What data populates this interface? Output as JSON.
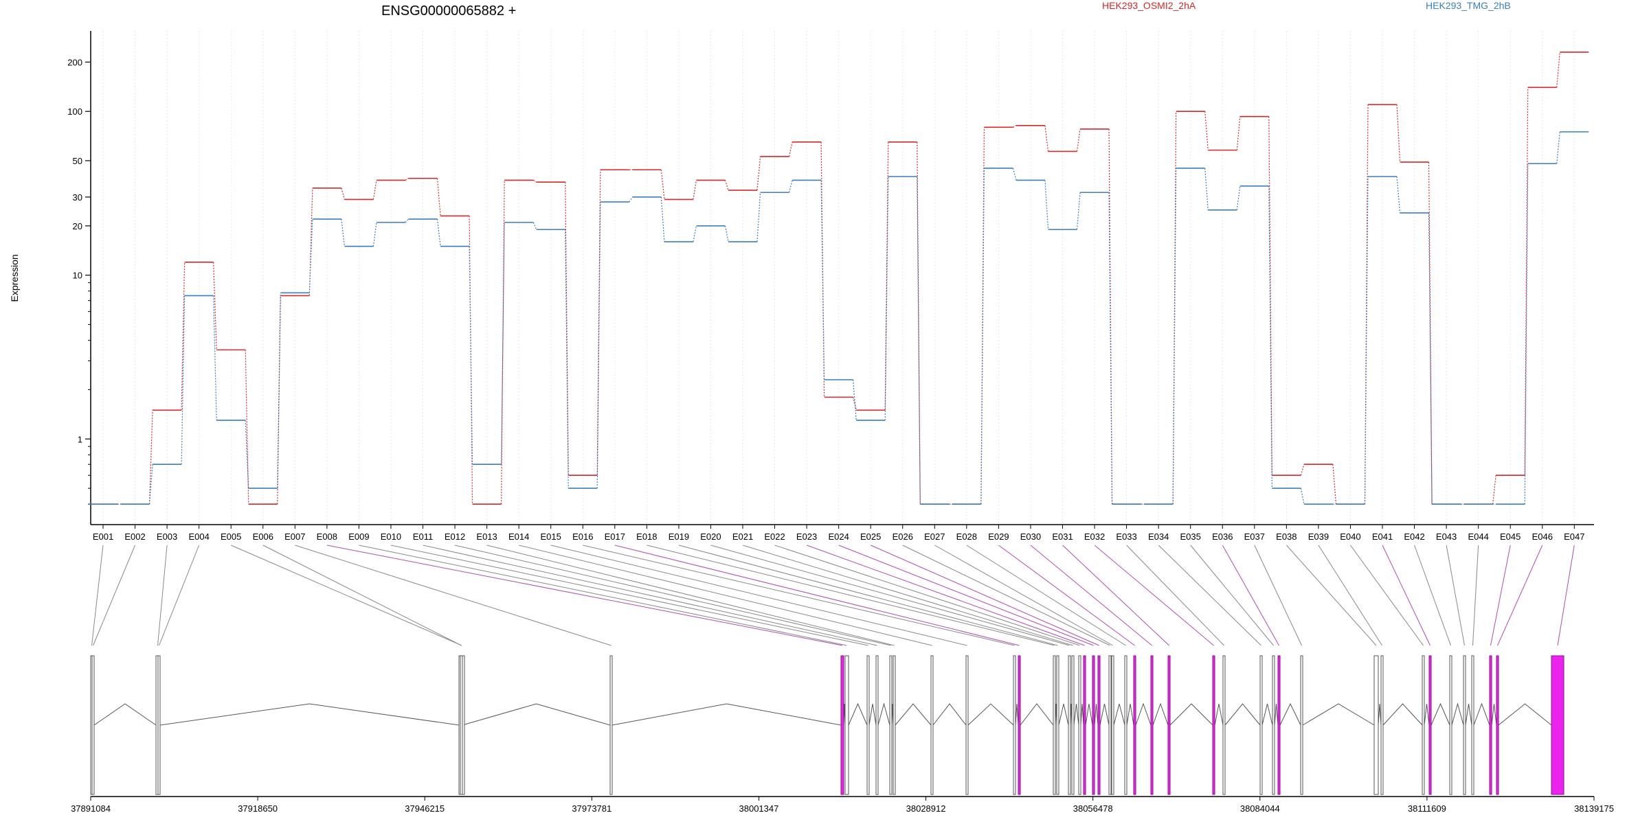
{
  "chart_data": {
    "type": "line",
    "title": "ENSG00000065882 +",
    "ylabel": "Expression",
    "yscale": "log",
    "ylim": [
      0.3,
      310
    ],
    "yticks": [
      1,
      10,
      20,
      30,
      50,
      100,
      200
    ],
    "grid": "vertical dotted at each exon",
    "categories": [
      "E001",
      "E002",
      "E003",
      "E004",
      "E005",
      "E006",
      "E007",
      "E008",
      "E009",
      "E010",
      "E011",
      "E012",
      "E013",
      "E014",
      "E015",
      "E016",
      "E017",
      "E018",
      "E019",
      "E020",
      "E021",
      "E022",
      "E023",
      "E024",
      "E025",
      "E026",
      "E027",
      "E028",
      "E029",
      "E030",
      "E031",
      "E032",
      "E033",
      "E034",
      "E035",
      "E036",
      "E037",
      "E038",
      "E039",
      "E040",
      "E041",
      "E042",
      "E043",
      "E044",
      "E045",
      "E046",
      "E047"
    ],
    "series": [
      {
        "name": "HEK293_OSMI2_2hA",
        "color": "#d62728",
        "values": [
          0.4,
          0.4,
          1.5,
          12,
          3.5,
          0.4,
          7.5,
          34,
          29,
          38,
          39,
          23,
          0.4,
          38,
          37,
          0.6,
          44,
          44,
          29,
          38,
          33,
          53,
          65,
          1.8,
          1.5,
          65,
          0.4,
          0.4,
          80,
          82,
          57,
          78,
          0.4,
          0.4,
          100,
          58,
          93,
          0.6,
          0.7,
          0.4,
          110,
          49,
          0.4,
          0.4,
          0.6,
          140,
          230
        ]
      },
      {
        "name": "HEK293_TMG_2hB",
        "color": "#3a7ebf",
        "values": [
          0.4,
          0.4,
          0.7,
          7.5,
          1.3,
          0.5,
          7.8,
          22,
          15,
          21,
          22,
          15,
          0.7,
          21,
          19,
          0.5,
          28,
          30,
          16,
          20,
          16,
          32,
          38,
          2.3,
          1.3,
          40,
          0.4,
          0.4,
          45,
          38,
          19,
          32,
          0.4,
          0.4,
          45,
          25,
          35,
          0.5,
          0.4,
          0.4,
          40,
          24,
          0.4,
          0.4,
          0.4,
          48,
          75
        ]
      }
    ],
    "genomic_axis": {
      "tick_labels": [
        "37891084",
        "37918650",
        "37946215",
        "37973781",
        "38001347",
        "38028912",
        "38056478",
        "38084044",
        "38111609",
        "38139175"
      ],
      "range": [
        37891084,
        38139175
      ]
    },
    "exons": {
      "highlighted": [
        "E008",
        "E017",
        "E023",
        "E024",
        "E025",
        "E029",
        "E030",
        "E031",
        "E032",
        "E036",
        "E041",
        "E045",
        "E046",
        "E047"
      ],
      "highlight_color": "#ee22ee",
      "normal_color": "#555555"
    }
  }
}
